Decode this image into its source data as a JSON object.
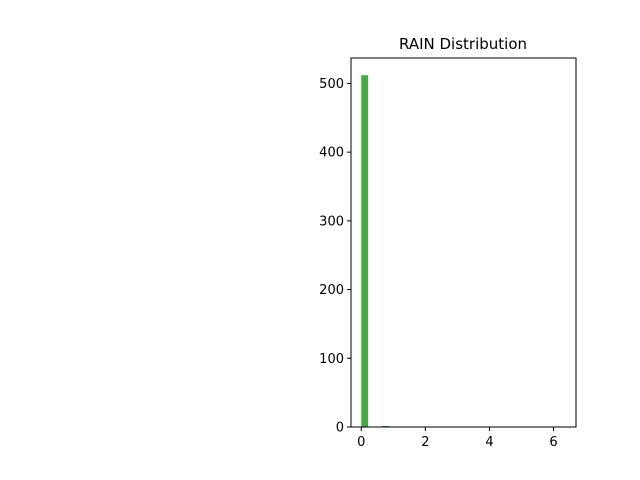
{
  "chart_data": {
    "type": "bar",
    "title": "RAIN Distribution",
    "xlabel": "",
    "ylabel": "",
    "xlim": [
      -0.32,
      6.7
    ],
    "ylim": [
      0,
      537
    ],
    "x_ticks": [
      0,
      2,
      4,
      6
    ],
    "y_ticks": [
      0,
      100,
      200,
      300,
      400,
      500
    ],
    "bars": [
      {
        "x_start": 0.0,
        "x_end": 0.216,
        "count": 512,
        "color": "#4aa84a"
      },
      {
        "x_start": 0.648,
        "x_end": 0.864,
        "count": 1,
        "color": "#4a7fb5"
      }
    ],
    "grid": false,
    "legend": "none"
  }
}
